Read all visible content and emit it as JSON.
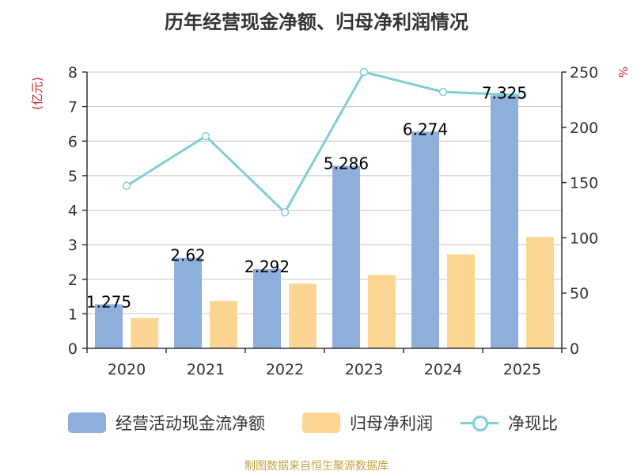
{
  "title": "历年经营现金净额、归母净利润情况",
  "source": "制图数据来自恒生聚源数据库",
  "colors": {
    "cash_flow": "#8eaedb",
    "net_profit": "#fdd592",
    "ratio": "#7fcfd6",
    "axis": "#333333",
    "grid": "#c8c8c8",
    "unit": "#d02020"
  },
  "legend": {
    "cash_flow": "经营活动现金流净额",
    "net_profit": "归母净利润",
    "ratio": "净现比"
  },
  "chart_data": {
    "type": "bar",
    "title": "历年经营现金净额、归母净利润情况",
    "categories": [
      "2020",
      "2021",
      "2022",
      "2023",
      "2024",
      "2025"
    ],
    "y_left": {
      "unit": "(亿元)",
      "ylim": [
        0,
        8
      ],
      "ticks": [
        "0",
        "1",
        "2",
        "3",
        "4",
        "5",
        "6",
        "7",
        "8"
      ]
    },
    "y_right": {
      "unit": "%",
      "ylim": [
        0,
        250
      ],
      "ticks": [
        "0",
        "50",
        "100",
        "150",
        "200",
        "250"
      ]
    },
    "grid": true,
    "legend_position": "bottom",
    "series": [
      {
        "name": "经营活动现金流净额",
        "type": "bar",
        "axis": "left",
        "values": [
          1.275,
          2.62,
          2.292,
          5.286,
          6.274,
          7.325
        ],
        "labels": [
          "1.275",
          "2.62",
          "2.292",
          "5.286",
          "6.274",
          "7.325"
        ]
      },
      {
        "name": "归母净利润",
        "type": "bar",
        "axis": "left",
        "values": [
          0.88,
          1.37,
          1.87,
          2.12,
          2.72,
          3.22
        ]
      },
      {
        "name": "净现比",
        "type": "line",
        "axis": "right",
        "values": [
          147,
          192,
          123,
          250,
          232,
          229
        ]
      }
    ]
  }
}
